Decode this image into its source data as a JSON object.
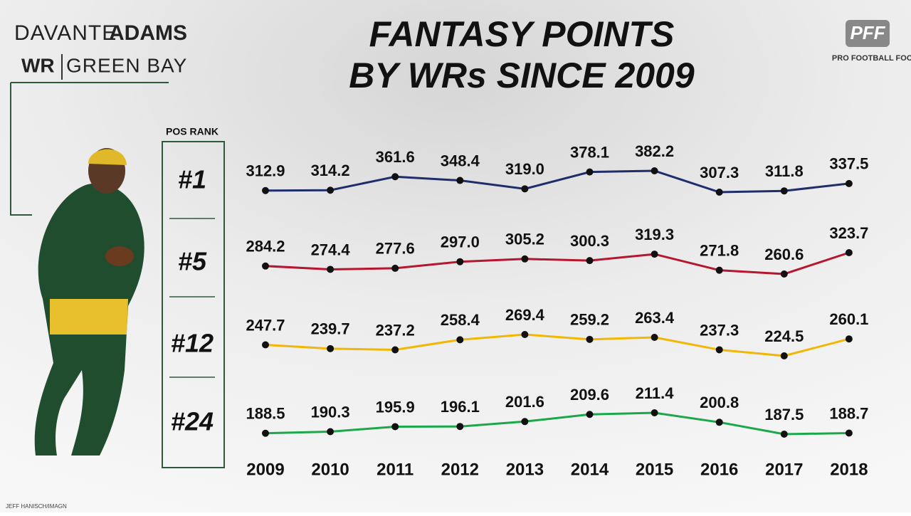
{
  "player": {
    "first": "DAVANTE",
    "last": "ADAMS",
    "position": "WR",
    "team": "GREEN BAY"
  },
  "logo": "PFF",
  "brand": "PRO FOOTBALL FOCUS",
  "credit": "JEFF HANISCH/IMAGN",
  "chart_data": {
    "type": "line",
    "title": [
      "FANTASY POINTS",
      "BY WRs SINCE 2009"
    ],
    "rank_header": "POS RANK",
    "categories": [
      "2009",
      "2010",
      "2011",
      "2012",
      "2013",
      "2014",
      "2015",
      "2016",
      "2017",
      "2018"
    ],
    "series": [
      {
        "name": "#1",
        "color": "#1f2d6b",
        "values": [
          312.9,
          314.2,
          361.6,
          348.4,
          319,
          378.1,
          382.2,
          307.3,
          311.8,
          337.5
        ],
        "value_labels": [
          "312.9",
          "314.2",
          "361.6",
          "348.4",
          "319.0",
          "378.1",
          "382.2",
          "307.3",
          "311.8",
          "337.5"
        ]
      },
      {
        "name": "#5",
        "color": "#b5172e",
        "values": [
          284.2,
          274.4,
          277.6,
          297,
          305.2,
          300.3,
          319.3,
          271.8,
          260.6,
          323.7
        ],
        "value_labels": [
          "284.2",
          "274.4",
          "277.6",
          "297.0",
          "305.2",
          "300.3",
          "319.3",
          "271.8",
          "260.6",
          "323.7"
        ]
      },
      {
        "name": "#12",
        "color": "#f2b705",
        "values": [
          247.7,
          239.7,
          237.2,
          258.4,
          269.4,
          259.2,
          263.4,
          237.3,
          224.5,
          260.1
        ],
        "value_labels": [
          "247.7",
          "239.7",
          "237.2",
          "258.4",
          "269.4",
          "259.2",
          "263.4",
          "237.3",
          "224.5",
          "260.1"
        ]
      },
      {
        "name": "#24",
        "color": "#1aa84a",
        "values": [
          188.5,
          190.3,
          195.9,
          196.1,
          201.6,
          209.6,
          211.4,
          200.8,
          187.5,
          188.7
        ],
        "value_labels": [
          "188.5",
          "190.3",
          "195.9",
          "196.1",
          "201.6",
          "209.6",
          "211.4",
          "200.8",
          "187.5",
          "188.7"
        ]
      }
    ]
  }
}
